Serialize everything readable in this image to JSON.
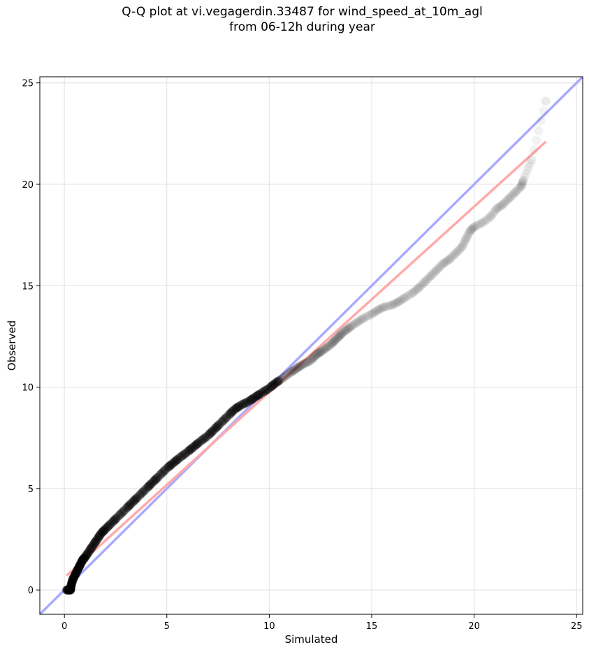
{
  "chart_data": {
    "type": "scatter",
    "title_lines": [
      "Q-Q plot at vi.vegagerdin.33487 for wind_speed_at_10m_agl",
      "from 06-12h during year"
    ],
    "xlabel": "Simulated",
    "ylabel": "Observed",
    "xlim": [
      -1.2,
      25.3
    ],
    "ylim": [
      -1.2,
      25.3
    ],
    "xticks": [
      0,
      5,
      10,
      15,
      20,
      25
    ],
    "yticks": [
      0,
      5,
      10,
      15,
      20,
      25
    ],
    "grid": true,
    "reference_lines": [
      {
        "kind": "identity",
        "color": "#aaaaff",
        "x": [
          -1.2,
          25.3
        ],
        "y": [
          -1.2,
          25.3
        ]
      },
      {
        "kind": "fit",
        "color": "#ffaaaa",
        "x": [
          0.1,
          23.5
        ],
        "y": [
          0.7,
          22.1
        ]
      }
    ],
    "point_color": "#000000",
    "series": [
      {
        "x": [
          0.1,
          0.2,
          0.25,
          0.3,
          0.3,
          0.35,
          0.4,
          0.5,
          0.6,
          0.7,
          0.8,
          0.9,
          1.0,
          1.2,
          1.4,
          1.6,
          1.8,
          2.0,
          2.3,
          2.6,
          3.0,
          3.3,
          3.6,
          4.0,
          4.3,
          4.6,
          5.0,
          5.3,
          5.6,
          6.0,
          6.3,
          6.6,
          7.0,
          7.3,
          7.6,
          8.0,
          8.3,
          8.6,
          9.0,
          9.3,
          9.6,
          10.0,
          10.3,
          10.6,
          11.0,
          11.3,
          11.6,
          12.0,
          12.3,
          12.6,
          13.0,
          13.3,
          13.6,
          14.0,
          14.3,
          14.6,
          15.0,
          15.3,
          15.6,
          16.0,
          16.3,
          16.6,
          17.0,
          17.3,
          17.6,
          17.9,
          18.2,
          18.5,
          18.8,
          19.1,
          19.4,
          19.6,
          19.8,
          20.0,
          20.4,
          20.8,
          21.1,
          21.4,
          21.7,
          22.0,
          22.3,
          22.4,
          22.8,
          23.5
        ],
        "y": [
          0.0,
          0.0,
          0.0,
          0.0,
          0.1,
          0.3,
          0.5,
          0.7,
          0.9,
          1.1,
          1.3,
          1.5,
          1.6,
          1.9,
          2.2,
          2.5,
          2.8,
          3.0,
          3.3,
          3.6,
          4.0,
          4.3,
          4.6,
          5.0,
          5.3,
          5.6,
          6.0,
          6.25,
          6.5,
          6.8,
          7.05,
          7.3,
          7.6,
          7.9,
          8.2,
          8.6,
          8.9,
          9.1,
          9.3,
          9.5,
          9.7,
          9.95,
          10.2,
          10.4,
          10.7,
          10.9,
          11.1,
          11.3,
          11.6,
          11.8,
          12.1,
          12.4,
          12.7,
          13.0,
          13.2,
          13.4,
          13.6,
          13.8,
          13.95,
          14.05,
          14.2,
          14.4,
          14.65,
          14.9,
          15.2,
          15.5,
          15.8,
          16.1,
          16.3,
          16.6,
          16.9,
          17.3,
          17.7,
          17.9,
          18.1,
          18.4,
          18.8,
          19.0,
          19.3,
          19.6,
          19.9,
          20.2,
          21.2,
          24.1
        ]
      }
    ]
  }
}
